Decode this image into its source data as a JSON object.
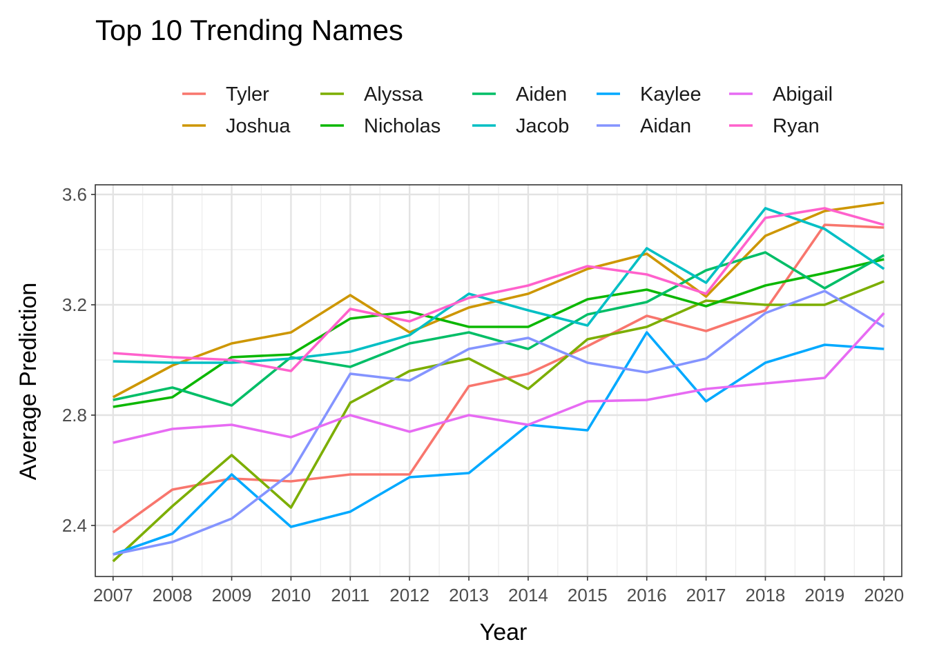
{
  "chart_data": {
    "type": "line",
    "title": "Top 10 Trending Names",
    "xlabel": "Year",
    "ylabel": "Average Prediction",
    "x": [
      2007,
      2008,
      2009,
      2010,
      2011,
      2012,
      2013,
      2014,
      2015,
      2016,
      2017,
      2018,
      2019,
      2020
    ],
    "x_tick_labels": [
      "2007",
      "2008",
      "2009",
      "2010",
      "2011",
      "2012",
      "2013",
      "2014",
      "2015",
      "2016",
      "2017",
      "2018",
      "2019",
      "2020"
    ],
    "yticks": [
      2.4,
      2.8,
      3.2,
      3.6
    ],
    "y_tick_labels": [
      "2.4",
      "2.8",
      "3.2",
      "3.6"
    ],
    "xlim": [
      2006.7,
      2020.3
    ],
    "ylim": [
      2.215,
      3.635
    ],
    "grid": true,
    "legend_position": "top",
    "series": [
      {
        "name": "Tyler",
        "color": "#F8766D",
        "values": [
          2.375,
          2.53,
          2.57,
          2.56,
          2.585,
          2.585,
          2.905,
          2.95,
          3.05,
          3.16,
          3.105,
          3.18,
          3.49,
          3.48
        ]
      },
      {
        "name": "Joshua",
        "color": "#CD9600",
        "values": [
          2.865,
          2.98,
          3.06,
          3.1,
          3.235,
          3.1,
          3.19,
          3.24,
          3.33,
          3.385,
          3.23,
          3.45,
          3.54,
          3.57
        ]
      },
      {
        "name": "Alyssa",
        "color": "#7CAE00",
        "values": [
          2.27,
          2.47,
          2.655,
          2.465,
          2.845,
          2.96,
          3.005,
          2.895,
          3.075,
          3.12,
          3.215,
          3.2,
          3.2,
          3.285
        ]
      },
      {
        "name": "Nicholas",
        "color": "#0CB702",
        "values": [
          2.83,
          2.865,
          3.01,
          3.02,
          3.15,
          3.175,
          3.12,
          3.12,
          3.22,
          3.255,
          3.195,
          3.27,
          3.315,
          3.365
        ]
      },
      {
        "name": "Aiden",
        "color": "#00BE67",
        "values": [
          2.855,
          2.9,
          2.835,
          3.01,
          2.975,
          3.06,
          3.1,
          3.04,
          3.165,
          3.21,
          3.325,
          3.39,
          3.26,
          3.38
        ]
      },
      {
        "name": "Jacob",
        "color": "#00BFC4",
        "values": [
          2.995,
          2.99,
          2.99,
          3.005,
          3.03,
          3.09,
          3.24,
          3.18,
          3.125,
          3.405,
          3.28,
          3.55,
          3.475,
          3.33
        ]
      },
      {
        "name": "Kaylee",
        "color": "#00A9FF",
        "values": [
          2.295,
          2.37,
          2.585,
          2.395,
          2.45,
          2.575,
          2.59,
          2.765,
          2.745,
          3.1,
          2.85,
          2.99,
          3.055,
          3.04
        ]
      },
      {
        "name": "Aidan",
        "color": "#8494FF",
        "values": [
          2.295,
          2.34,
          2.425,
          2.59,
          2.95,
          2.925,
          3.04,
          3.08,
          2.99,
          2.955,
          3.005,
          3.17,
          3.25,
          3.12
        ]
      },
      {
        "name": "Abigail",
        "color": "#E76BF3",
        "values": [
          2.7,
          2.75,
          2.765,
          2.72,
          2.8,
          2.74,
          2.8,
          2.765,
          2.85,
          2.855,
          2.895,
          2.915,
          2.935,
          3.17
        ]
      },
      {
        "name": "Ryan",
        "color": "#FF61CC",
        "values": [
          3.025,
          3.01,
          3.0,
          2.96,
          3.185,
          3.14,
          3.225,
          3.27,
          3.34,
          3.31,
          3.24,
          3.515,
          3.55,
          3.49
        ]
      }
    ]
  }
}
